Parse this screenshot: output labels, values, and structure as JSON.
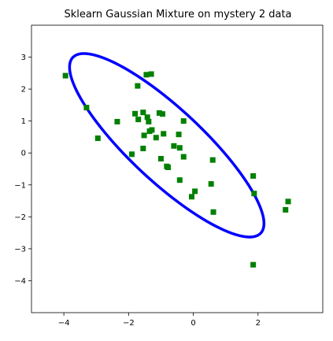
{
  "chart_data": {
    "type": "scatter",
    "title": "Sklearn Gaussian Mixture on mystery 2 data",
    "xlabel": "",
    "ylabel": "",
    "xlim": [
      -5,
      4
    ],
    "ylim": [
      -5,
      4
    ],
    "xticks": [
      -4,
      -2,
      0,
      2
    ],
    "xtick_labels": [
      "−4",
      "−2",
      "0",
      "2"
    ],
    "yticks": [
      -4,
      -3,
      -2,
      -1,
      0,
      1,
      2,
      3
    ],
    "ytick_labels": [
      "−4",
      "−3",
      "−2",
      "−1",
      "0",
      "1",
      "2",
      "3"
    ],
    "grid": false,
    "legend": "none",
    "marker": "square",
    "marker_color": "#008000",
    "ellipse_color": "#0000ff",
    "points": [
      {
        "x": -3.95,
        "y": 2.42
      },
      {
        "x": -3.3,
        "y": 1.42
      },
      {
        "x": -2.95,
        "y": 0.46
      },
      {
        "x": -2.35,
        "y": 0.98
      },
      {
        "x": -1.9,
        "y": -0.04
      },
      {
        "x": -1.8,
        "y": 1.23
      },
      {
        "x": -1.72,
        "y": 2.1
      },
      {
        "x": -1.7,
        "y": 1.05
      },
      {
        "x": -1.55,
        "y": 1.27
      },
      {
        "x": -1.55,
        "y": 0.14
      },
      {
        "x": -1.52,
        "y": 0.55
      },
      {
        "x": -1.45,
        "y": 2.45
      },
      {
        "x": -1.42,
        "y": 1.12
      },
      {
        "x": -1.38,
        "y": 0.98
      },
      {
        "x": -1.35,
        "y": 0.68
      },
      {
        "x": -1.3,
        "y": 2.47
      },
      {
        "x": -1.28,
        "y": 0.72
      },
      {
        "x": -1.15,
        "y": 0.48
      },
      {
        "x": -1.05,
        "y": 1.25
      },
      {
        "x": -1.0,
        "y": -0.18
      },
      {
        "x": -0.95,
        "y": 1.22
      },
      {
        "x": -0.92,
        "y": 0.6
      },
      {
        "x": -0.82,
        "y": -0.42
      },
      {
        "x": -0.78,
        "y": -0.45
      },
      {
        "x": -0.6,
        "y": 0.22
      },
      {
        "x": -0.45,
        "y": 0.58
      },
      {
        "x": -0.42,
        "y": 0.16
      },
      {
        "x": -0.42,
        "y": -0.85
      },
      {
        "x": -0.3,
        "y": 1.0
      },
      {
        "x": -0.3,
        "y": -0.12
      },
      {
        "x": -0.05,
        "y": -1.37
      },
      {
        "x": 0.05,
        "y": -1.2
      },
      {
        "x": 0.55,
        "y": -0.97
      },
      {
        "x": 0.6,
        "y": -0.22
      },
      {
        "x": 0.62,
        "y": -1.85
      },
      {
        "x": 1.85,
        "y": -0.72
      },
      {
        "x": 1.85,
        "y": -3.5
      },
      {
        "x": 1.88,
        "y": -1.27
      },
      {
        "x": 2.85,
        "y": -1.78
      },
      {
        "x": 2.93,
        "y": -1.52
      }
    ],
    "ellipse": {
      "center": [
        -0.82,
        0.24
      ],
      "semi_major": 4.0,
      "semi_minor": 1.13,
      "angle_deg": -43.5
    }
  }
}
